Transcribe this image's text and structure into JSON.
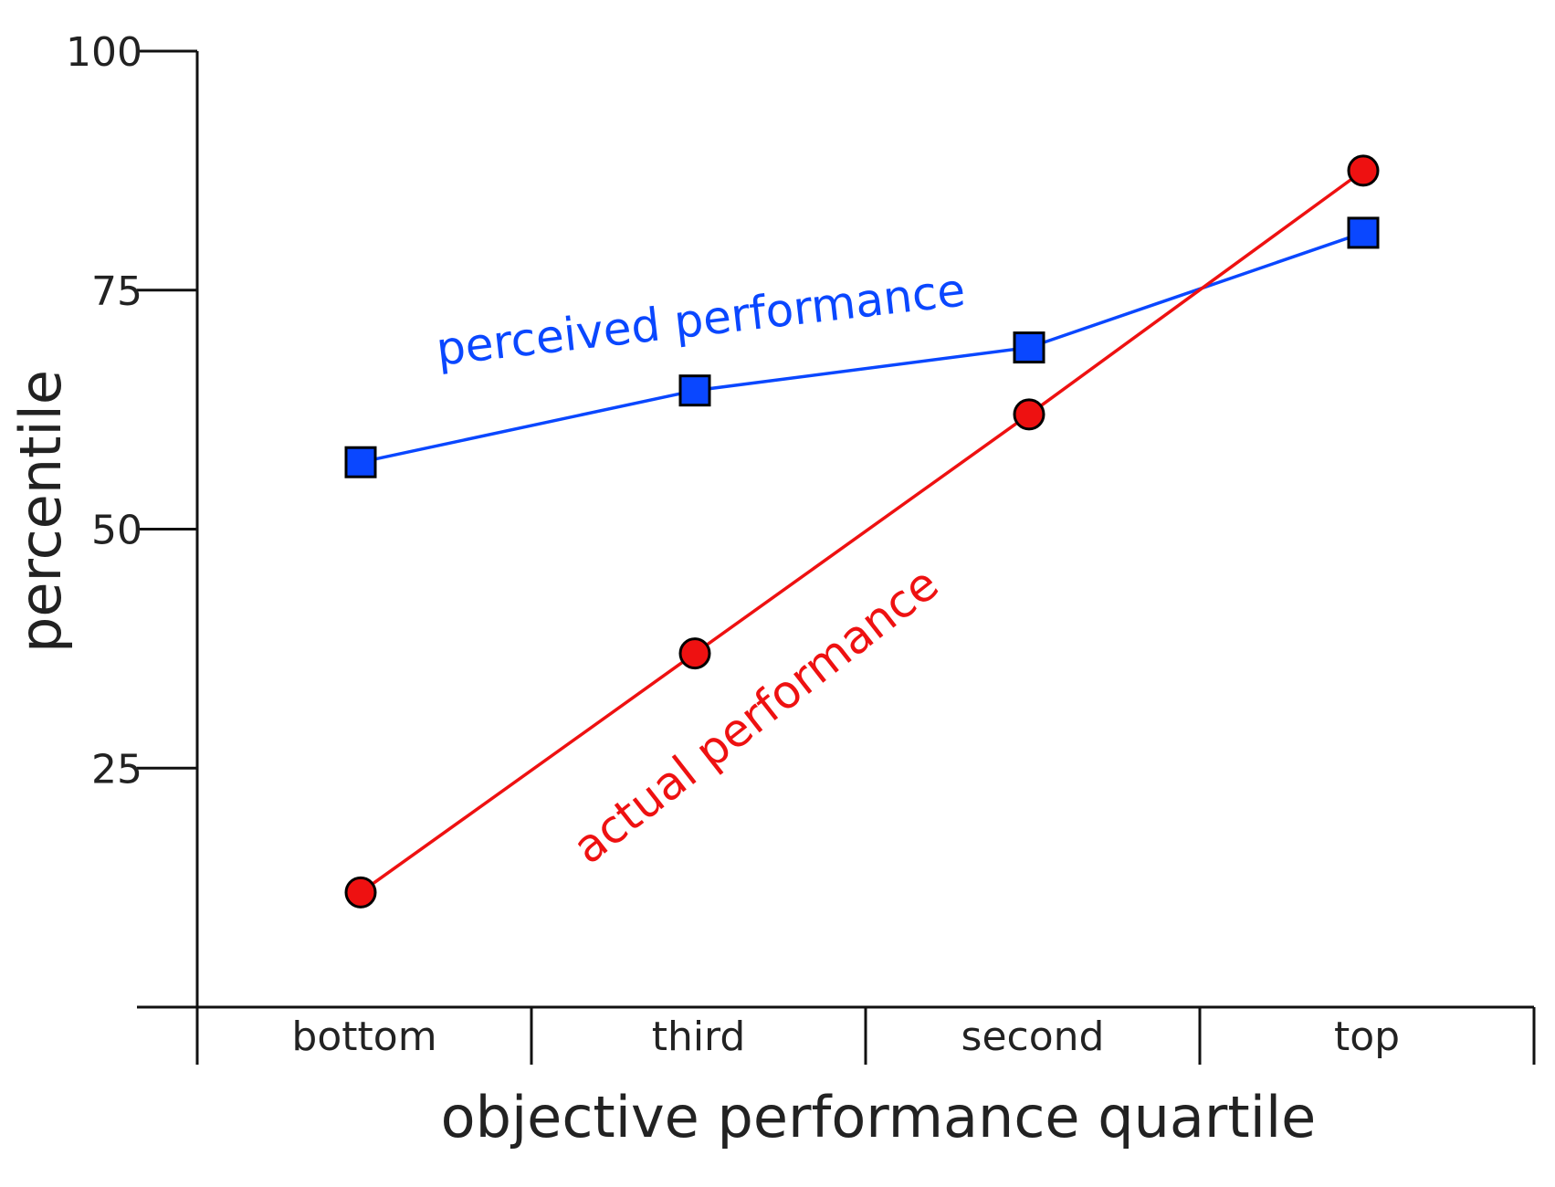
{
  "chart_data": {
    "type": "line",
    "xlabel": "objective performance quartile",
    "ylabel": "percentile",
    "categories": [
      "bottom",
      "third",
      "second",
      "top"
    ],
    "ylim": [
      0,
      100
    ],
    "yticks": [
      25,
      50,
      75,
      100
    ],
    "grid": false,
    "legend": "inline",
    "series": [
      {
        "name": "perceived performance",
        "color": "#0a47ff",
        "marker": "square",
        "values": [
          57,
          64.5,
          69,
          81
        ]
      },
      {
        "name": "actual performance",
        "color": "#ee1111",
        "marker": "circle",
        "values": [
          12,
          37,
          62,
          87.5
        ]
      }
    ]
  }
}
